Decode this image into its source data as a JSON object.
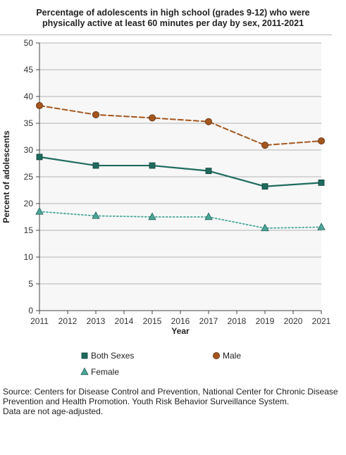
{
  "title_line1": "Percentage of adolescents in high school (grades 9-12) who were",
  "title_line2": "physically active at least 60 minutes per day by sex, 2011-2021",
  "chart_data": {
    "type": "line",
    "title": "Percentage of adolescents in high school (grades 9-12) who were physically active at least 60 minutes per day by sex, 2011-2021",
    "xlabel": "Year",
    "ylabel": "Percent of adolescents",
    "xlim": [
      2011,
      2021
    ],
    "ylim": [
      0,
      50
    ],
    "x_ticks": [
      2011,
      2012,
      2013,
      2014,
      2015,
      2016,
      2017,
      2018,
      2019,
      2020,
      2021
    ],
    "y_ticks": [
      0,
      5,
      10,
      15,
      20,
      25,
      30,
      35,
      40,
      45,
      50
    ],
    "grid": "horizontal",
    "legend_position": "bottom",
    "x": [
      2011,
      2013,
      2015,
      2017,
      2019,
      2021
    ],
    "series": [
      {
        "name": "Both Sexes",
        "values": [
          28.7,
          27.1,
          27.1,
          26.1,
          23.2,
          23.9
        ],
        "color": "#1e6b5e",
        "line": "solid",
        "marker": "square"
      },
      {
        "name": "Male",
        "values": [
          38.3,
          36.6,
          36.0,
          35.3,
          30.9,
          31.7
        ],
        "color": "#a4561e",
        "line": "dashed",
        "marker": "circle"
      },
      {
        "name": "Female",
        "values": [
          18.5,
          17.7,
          17.5,
          17.5,
          15.4,
          15.6
        ],
        "color": "#4aa79a",
        "line": "dotted",
        "marker": "triangle"
      }
    ]
  },
  "source_lines": [
    "Source: Centers for Disease Control and Prevention, National Center for Chronic Disease",
    "Prevention and Health Promotion. Youth Risk Behavior Surveillance System.",
    "Data are not age-adjusted."
  ]
}
